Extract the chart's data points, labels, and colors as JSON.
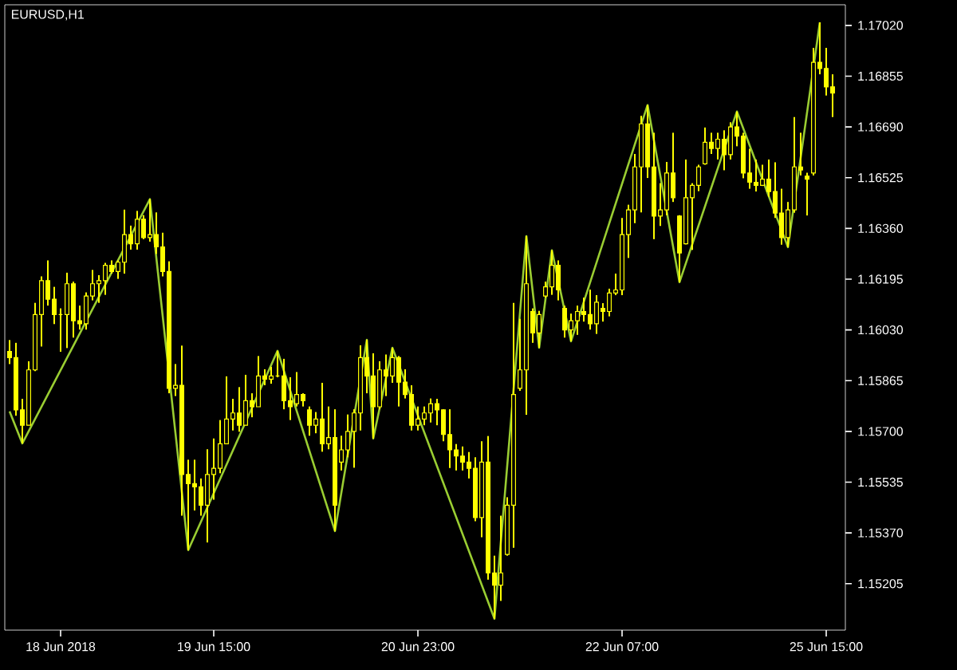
{
  "chart_data": {
    "type": "candlestick",
    "title": "EURUSD,H1",
    "color": "#ffff00",
    "categories": [
      null,
      null,
      null,
      null,
      null,
      null,
      null,
      null,
      "18 Jun 2018",
      null,
      null,
      null,
      null,
      null,
      null,
      null,
      null,
      null,
      null,
      null,
      null,
      null,
      null,
      null,
      null,
      null,
      null,
      null,
      null,
      null,
      null,
      null,
      "19 Jun 15:00",
      null,
      null,
      null,
      null,
      null,
      null,
      null,
      null,
      null,
      null,
      null,
      null,
      null,
      null,
      null,
      null,
      null,
      null,
      null,
      null,
      null,
      null,
      null,
      null,
      null,
      null,
      null,
      null,
      null,
      null,
      null,
      "20 Jun 23:00",
      null,
      null,
      null,
      null,
      null,
      null,
      null,
      null,
      null,
      null,
      null,
      null,
      null,
      null,
      null,
      null,
      null,
      null,
      null,
      null,
      null,
      null,
      null,
      null,
      null,
      null,
      null,
      null,
      null,
      null,
      null,
      "22 Jun 07:00",
      null,
      null,
      null,
      null,
      null,
      null,
      null,
      null,
      null,
      null,
      null,
      null,
      null,
      null,
      null,
      null,
      null,
      null,
      null,
      null,
      null,
      null,
      null,
      null,
      null,
      null,
      null,
      null,
      null,
      null,
      null,
      "25 Jun 15:00",
      null
    ],
    "ohlc": [
      [
        1.1596,
        1.15997,
        1.15919,
        1.1594
      ],
      [
        1.1594,
        1.15988,
        1.15751,
        1.1577
      ],
      [
        1.1577,
        1.15806,
        1.15661,
        1.1572
      ],
      [
        1.1572,
        1.15928,
        1.1572,
        1.159
      ],
      [
        1.159,
        1.16118,
        1.15896,
        1.1608
      ],
      [
        1.1608,
        1.16204,
        1.15976,
        1.1619
      ],
      [
        1.1619,
        1.16256,
        1.16109,
        1.1613
      ],
      [
        1.1613,
        1.1617,
        1.16049,
        1.1608
      ],
      [
        1.1608,
        1.161,
        1.15959,
        1.1608
      ],
      [
        1.1608,
        1.16216,
        1.15971,
        1.1618
      ],
      [
        1.1618,
        1.16187,
        1.16005,
        1.1606
      ],
      [
        1.1606,
        1.16109,
        1.16031,
        1.1605
      ],
      [
        1.1605,
        1.16152,
        1.16031,
        1.1614
      ],
      [
        1.1614,
        1.16225,
        1.16126,
        1.1618
      ],
      [
        1.1618,
        1.16208,
        1.16118,
        1.1619
      ],
      [
        1.1619,
        1.16248,
        1.16144,
        1.1624
      ],
      [
        1.1624,
        1.16256,
        1.16213,
        1.1622
      ],
      [
        1.1622,
        1.16256,
        1.16196,
        1.1625
      ],
      [
        1.1625,
        1.16421,
        1.16213,
        1.1634
      ],
      [
        1.1634,
        1.16369,
        1.16291,
        1.1631
      ],
      [
        1.1631,
        1.16417,
        1.16291,
        1.1639
      ],
      [
        1.1639,
        1.16403,
        1.16325,
        1.1633
      ],
      [
        1.1633,
        1.16455,
        1.16317,
        1.1634
      ],
      [
        1.1634,
        1.16412,
        1.16277,
        1.163
      ],
      [
        1.163,
        1.16346,
        1.16204,
        1.1622
      ],
      [
        1.1622,
        1.16253,
        1.15824,
        1.1584
      ],
      [
        1.1584,
        1.15919,
        1.15815,
        1.1585
      ],
      [
        1.1585,
        1.15979,
        1.15426,
        1.1556
      ],
      [
        1.1556,
        1.15608,
        1.15314,
        1.1553
      ],
      [
        1.1553,
        1.15608,
        1.15443,
        1.1552
      ],
      [
        1.1552,
        1.15547,
        1.15426,
        1.1546
      ],
      [
        1.1546,
        1.15642,
        1.15339,
        1.1556
      ],
      [
        1.1556,
        1.15677,
        1.15478,
        1.1558
      ],
      [
        1.1558,
        1.15737,
        1.15564,
        1.1566
      ],
      [
        1.1566,
        1.15879,
        1.15659,
        1.1574
      ],
      [
        1.1574,
        1.15806,
        1.15703,
        1.1576
      ],
      [
        1.1576,
        1.15844,
        1.15699,
        1.1572
      ],
      [
        1.1572,
        1.15884,
        1.1572,
        1.158
      ],
      [
        1.158,
        1.15824,
        1.15746,
        1.1578
      ],
      [
        1.1578,
        1.15945,
        1.1578,
        1.1588
      ],
      [
        1.1588,
        1.15902,
        1.1585,
        1.1587
      ],
      [
        1.1587,
        1.1591,
        1.15855,
        1.1588
      ],
      [
        1.1588,
        1.15962,
        1.15876,
        1.1588
      ],
      [
        1.1588,
        1.15936,
        1.15772,
        1.158
      ],
      [
        1.158,
        1.15876,
        1.15737,
        1.1578
      ],
      [
        1.1579,
        1.15893,
        1.15781,
        1.1582
      ],
      [
        1.1582,
        1.15824,
        1.15781,
        1.158
      ],
      [
        1.1577,
        1.15781,
        1.15686,
        1.1572
      ],
      [
        1.1572,
        1.15763,
        1.15694,
        1.1574
      ],
      [
        1.1574,
        1.15858,
        1.15634,
        1.1566
      ],
      [
        1.1566,
        1.15781,
        1.15642,
        1.1568
      ],
      [
        1.1568,
        1.15772,
        1.15376,
        1.1546
      ],
      [
        1.156,
        1.15686,
        1.15573,
        1.1564
      ],
      [
        1.1564,
        1.15755,
        1.15616,
        1.157
      ],
      [
        1.157,
        1.15772,
        1.15582,
        1.1576
      ],
      [
        1.1576,
        1.1598,
        1.15703,
        1.1594
      ],
      [
        1.1594,
        1.15998,
        1.15824,
        1.1588
      ],
      [
        1.1588,
        1.15954,
        1.15677,
        1.1578
      ],
      [
        1.1578,
        1.15928,
        1.15772,
        1.159
      ],
      [
        1.159,
        1.1595,
        1.15815,
        1.1588
      ],
      [
        1.1588,
        1.15972,
        1.15858,
        1.1594
      ],
      [
        1.1594,
        1.15945,
        1.15781,
        1.1586
      ],
      [
        1.1586,
        1.15902,
        1.15807,
        1.1582
      ],
      [
        1.1582,
        1.1585,
        1.15703,
        1.1572
      ],
      [
        1.1572,
        1.15781,
        1.15703,
        1.1574
      ],
      [
        1.1574,
        1.15781,
        1.1572,
        1.1576
      ],
      [
        1.1576,
        1.15807,
        1.15729,
        1.1579
      ],
      [
        1.1579,
        1.15806,
        1.1572,
        1.1577
      ],
      [
        1.1577,
        1.15772,
        1.15668,
        1.1569
      ],
      [
        1.1569,
        1.15772,
        1.15581,
        1.1564
      ],
      [
        1.1564,
        1.15659,
        1.15573,
        1.1562
      ],
      [
        1.1562,
        1.15651,
        1.15573,
        1.156
      ],
      [
        1.156,
        1.15633,
        1.15547,
        1.1558
      ],
      [
        1.1558,
        1.15616,
        1.15408,
        1.1542
      ],
      [
        1.1542,
        1.15668,
        1.15356,
        1.156
      ],
      [
        1.156,
        1.15685,
        1.15218,
        1.1524
      ],
      [
        1.1524,
        1.15296,
        1.15091,
        1.152
      ],
      [
        1.152,
        1.15426,
        1.15149,
        1.1524
      ],
      [
        1.153,
        1.15486,
        1.15296,
        1.1546
      ],
      [
        1.1546,
        1.16118,
        1.15322,
        1.1582
      ],
      [
        1.1584,
        1.16066,
        1.15832,
        1.159
      ],
      [
        1.159,
        1.16335,
        1.15754,
        1.1618
      ],
      [
        1.1609,
        1.161,
        1.15988,
        1.1602
      ],
      [
        1.1602,
        1.16092,
        1.15972,
        1.1608
      ],
      [
        1.1614,
        1.16187,
        1.16135,
        1.1617
      ],
      [
        1.1617,
        1.16289,
        1.16144,
        1.1624
      ],
      [
        1.1624,
        1.16256,
        1.16126,
        1.1616
      ],
      [
        1.161,
        1.16109,
        1.16005,
        1.1603
      ],
      [
        1.1603,
        1.16083,
        1.15993,
        1.1606
      ],
      [
        1.1606,
        1.16109,
        1.16014,
        1.1609
      ],
      [
        1.1609,
        1.16135,
        1.16057,
        1.1608
      ],
      [
        1.1608,
        1.16161,
        1.16031,
        1.1605
      ],
      [
        1.1605,
        1.16143,
        1.16017,
        1.1612
      ],
      [
        1.161,
        1.16117,
        1.16057,
        1.1609
      ],
      [
        1.1609,
        1.16164,
        1.16074,
        1.1615
      ],
      [
        1.1615,
        1.16213,
        1.16143,
        1.1616
      ],
      [
        1.1616,
        1.16394,
        1.16143,
        1.1634
      ],
      [
        1.1634,
        1.16437,
        1.16264,
        1.1642
      ],
      [
        1.1642,
        1.16602,
        1.16377,
        1.1656
      ],
      [
        1.1656,
        1.16726,
        1.16412,
        1.167
      ],
      [
        1.167,
        1.16761,
        1.16524,
        1.1656
      ],
      [
        1.1656,
        1.16671,
        1.16325,
        1.164
      ],
      [
        1.164,
        1.16507,
        1.16368,
        1.1642
      ],
      [
        1.1642,
        1.16576,
        1.16403,
        1.1654
      ],
      [
        1.1654,
        1.16671,
        1.16446,
        1.1646
      ],
      [
        1.164,
        1.16403,
        1.16185,
        1.1628
      ],
      [
        1.1631,
        1.16584,
        1.16308,
        1.1646
      ],
      [
        1.1646,
        1.16507,
        1.1629,
        1.165
      ],
      [
        1.165,
        1.16567,
        1.16481,
        1.1656
      ],
      [
        1.1657,
        1.16688,
        1.16567,
        1.1664
      ],
      [
        1.1664,
        1.16671,
        1.16602,
        1.1662
      ],
      [
        1.1662,
        1.16671,
        1.16584,
        1.1665
      ],
      [
        1.1665,
        1.16679,
        1.16549,
        1.166
      ],
      [
        1.166,
        1.16705,
        1.16584,
        1.1669
      ],
      [
        1.1669,
        1.1674,
        1.16627,
        1.1666
      ],
      [
        1.1666,
        1.16671,
        1.16523,
        1.1654
      ],
      [
        1.1654,
        1.16619,
        1.16489,
        1.1651
      ],
      [
        1.1651,
        1.16584,
        1.1648,
        1.165
      ],
      [
        1.165,
        1.16567,
        1.16498,
        1.1652
      ],
      [
        1.1652,
        1.16584,
        1.16463,
        1.1648
      ],
      [
        1.1648,
        1.16575,
        1.16394,
        1.1641
      ],
      [
        1.1641,
        1.16489,
        1.16307,
        1.1633
      ],
      [
        1.1633,
        1.16446,
        1.16299,
        1.1642
      ],
      [
        1.1642,
        1.16722,
        1.16411,
        1.1656
      ],
      [
        1.1656,
        1.16671,
        1.16532,
        1.1655
      ],
      [
        1.1653,
        1.16541,
        1.16402,
        1.1652
      ],
      [
        1.1654,
        1.16947,
        1.16532,
        1.169
      ],
      [
        1.169,
        1.1703,
        1.16861,
        1.1688
      ],
      [
        1.1688,
        1.16947,
        1.16792,
        1.1682
      ],
      [
        1.1682,
        1.16861,
        1.16722,
        1.168
      ]
    ],
    "series": [
      {
        "type": "line",
        "color": "#9acd32",
        "values": [
          1.15765,
          null,
          1.15661,
          null,
          null,
          null,
          null,
          null,
          null,
          null,
          null,
          null,
          null,
          null,
          null,
          null,
          null,
          null,
          null,
          null,
          null,
          null,
          1.16455,
          null,
          null,
          null,
          null,
          null,
          1.15314,
          null,
          null,
          null,
          null,
          null,
          null,
          null,
          null,
          null,
          null,
          null,
          null,
          null,
          1.15962,
          null,
          null,
          null,
          null,
          null,
          null,
          null,
          null,
          1.15376,
          null,
          null,
          null,
          null,
          1.15998,
          1.15677,
          null,
          null,
          1.15972,
          null,
          null,
          null,
          null,
          null,
          null,
          null,
          null,
          null,
          null,
          null,
          null,
          null,
          null,
          null,
          1.15091,
          null,
          null,
          null,
          null,
          1.16335,
          null,
          1.15972,
          null,
          1.16289,
          null,
          null,
          1.15993,
          null,
          null,
          null,
          null,
          null,
          null,
          null,
          null,
          null,
          null,
          null,
          1.16761,
          null,
          null,
          null,
          null,
          1.16185,
          null,
          null,
          null,
          null,
          null,
          null,
          null,
          null,
          1.1674,
          null,
          null,
          null,
          null,
          null,
          null,
          null,
          1.16299,
          null,
          null,
          null,
          null,
          1.1703,
          null,
          null
        ]
      }
    ],
    "ylim": [
      1.15054,
      1.17087
    ],
    "yticks": [
      {
        "value": 1.15205,
        "label": "1.15205"
      },
      {
        "value": 1.1537,
        "label": "1.15370"
      },
      {
        "value": 1.15535,
        "label": "1.15535"
      },
      {
        "value": 1.157,
        "label": "1.15700"
      },
      {
        "value": 1.15865,
        "label": "1.15865"
      },
      {
        "value": 1.1603,
        "label": "1.16030"
      },
      {
        "value": 1.16195,
        "label": "1.16195"
      },
      {
        "value": 1.1636,
        "label": "1.16360"
      },
      {
        "value": 1.16525,
        "label": "1.16525"
      },
      {
        "value": 1.1669,
        "label": "1.16690"
      },
      {
        "value": 1.16855,
        "label": "1.16855"
      },
      {
        "value": 1.1702,
        "label": "1.17020"
      }
    ]
  }
}
